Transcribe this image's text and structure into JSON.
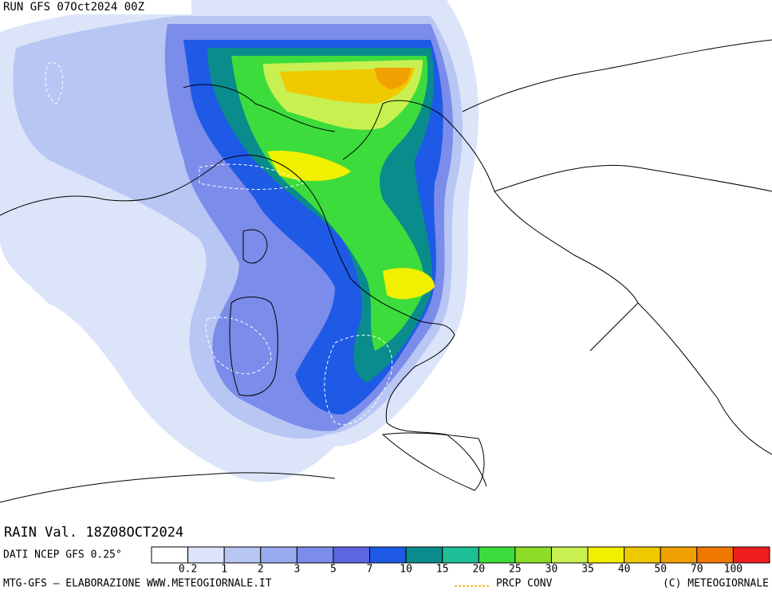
{
  "header": {
    "run": "RUN GFS 07Oct2024 00Z"
  },
  "map": {
    "valid": "RAIN Val. 18Z08OCT2024"
  },
  "legend": {
    "labels": [
      0.2,
      1,
      2,
      3,
      5,
      7,
      10,
      15,
      20,
      25,
      30,
      35,
      40,
      50,
      70,
      100
    ],
    "colors": [
      "#ffffff",
      "#dce4fa",
      "#b8c6f4",
      "#98aaf0",
      "#7c8cea",
      "#5c66e0",
      "#1e5ae6",
      "#0a8c8c",
      "#1ebe96",
      "#3cdc3c",
      "#8cdc28",
      "#c8f050",
      "#f0f000",
      "#f0c800",
      "#f0a000",
      "#f07800",
      "#f01e1e"
    ]
  },
  "footer": {
    "source": "DATI NCEP GFS 0.25°",
    "credit": "MTG-GFS — ELABORAZIONE WWW.METEOGIORNALE.IT",
    "conv": "PRCP CONV",
    "copyright": "(C) METEOGIORNALE"
  }
}
